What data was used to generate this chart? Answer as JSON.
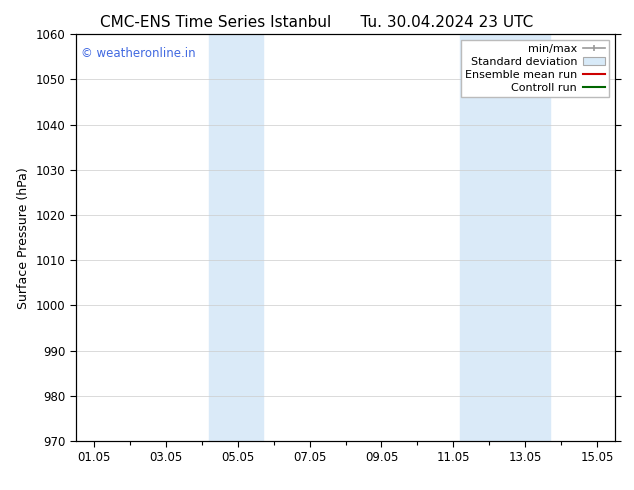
{
  "title_left": "CMC-ENS Time Series Istanbul",
  "title_right": "Tu. 30.04.2024 23 UTC",
  "ylabel": "Surface Pressure (hPa)",
  "ylim": [
    970,
    1060
  ],
  "yticks": [
    970,
    980,
    990,
    1000,
    1010,
    1020,
    1030,
    1040,
    1050,
    1060
  ],
  "xtick_labels": [
    "01.05",
    "03.05",
    "05.05",
    "07.05",
    "09.05",
    "11.05",
    "13.05",
    "15.05"
  ],
  "xtick_positions": [
    0,
    2,
    4,
    6,
    8,
    10,
    12,
    14
  ],
  "x_minor_positions": [
    1,
    3,
    5,
    7,
    9,
    11,
    13
  ],
  "xlim": [
    -0.5,
    14.5
  ],
  "shaded_bands": [
    {
      "xmin": 3.2,
      "xmax": 4.7,
      "color": "#daeaf8"
    },
    {
      "xmin": 10.2,
      "xmax": 11.2,
      "color": "#daeaf8"
    },
    {
      "xmin": 11.2,
      "xmax": 12.7,
      "color": "#daeaf8"
    }
  ],
  "watermark": "© weatheronline.in",
  "watermark_color": "#4169e1",
  "legend_labels": [
    "min/max",
    "Standard deviation",
    "Ensemble mean run",
    "Controll run"
  ],
  "background_color": "#ffffff",
  "grid_color": "#cccccc",
  "title_fontsize": 11,
  "tick_fontsize": 8.5,
  "label_fontsize": 9
}
